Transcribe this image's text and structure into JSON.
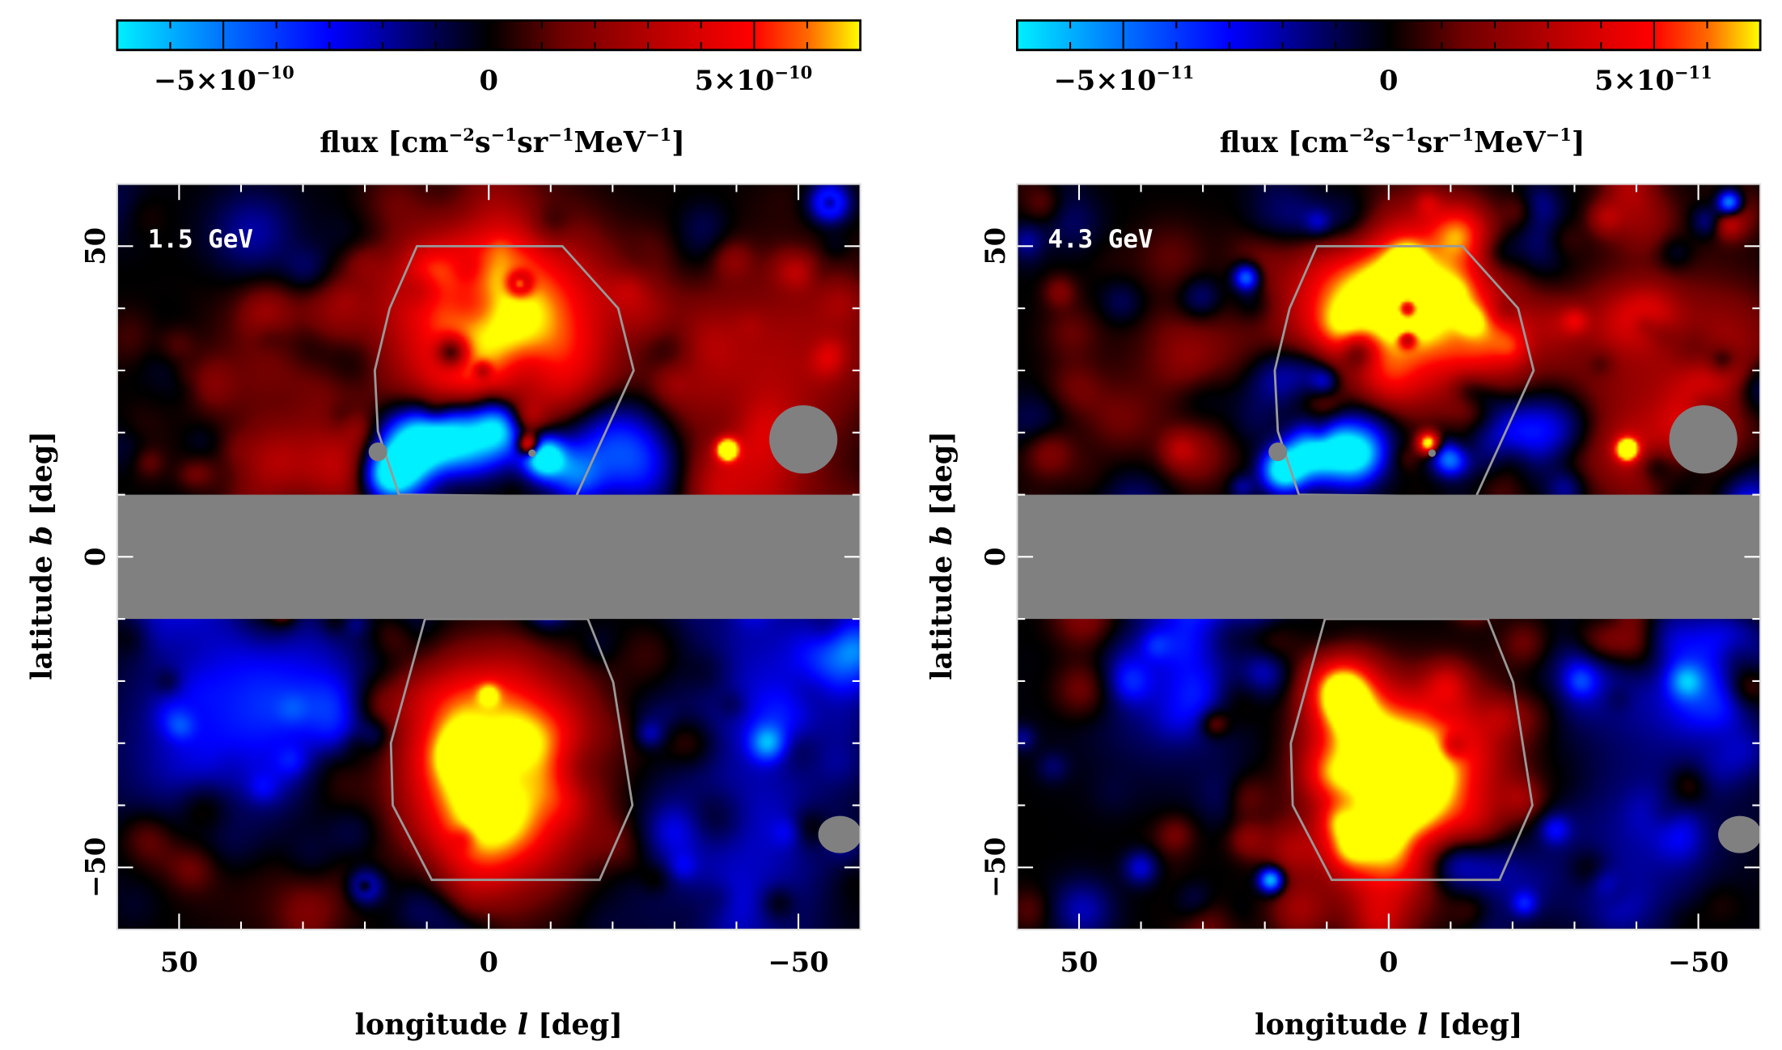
{
  "chart_data": [
    {
      "type": "heatmap",
      "energy_label": "1.5 GeV",
      "xlabel": {
        "pre": "longitude ",
        "var": "l",
        "post": " [deg]"
      },
      "ylabel": {
        "pre": "latitude ",
        "var": "b",
        "post": " [deg]"
      },
      "xlim": [
        60,
        -60
      ],
      "ylim": [
        -60,
        60
      ],
      "x_ticks": [
        {
          "value": 50,
          "label": "50"
        },
        {
          "value": 0,
          "label": "0"
        },
        {
          "value": -50,
          "label": "−50"
        }
      ],
      "y_ticks": [
        {
          "value": 50,
          "label": "50"
        },
        {
          "value": 0,
          "label": "0"
        },
        {
          "value": -50,
          "label": "−50"
        }
      ],
      "colorbar": {
        "min": -7e-10,
        "max": 7e-10,
        "minor_step": 1e-10,
        "labels": [
          {
            "value": -5e-10,
            "mantissa": "−5×10",
            "exponent": "−10"
          },
          {
            "value": 0,
            "mantissa": "0",
            "exponent": ""
          },
          {
            "value": 5e-10,
            "mantissa": "5×10",
            "exponent": "−10"
          }
        ],
        "title_parts": [
          [
            "flux [cm",
            ""
          ],
          [
            "",
            "−2"
          ],
          [
            "s",
            ""
          ],
          [
            "",
            "−1"
          ],
          [
            "sr",
            ""
          ],
          [
            "",
            "−1"
          ],
          [
            "MeV",
            ""
          ],
          [
            "",
            "−1"
          ],
          [
            "]",
            ""
          ]
        ]
      },
      "colormap": [
        [
          -1,
          "#00f0ff"
        ],
        [
          -0.71,
          "#0070ff"
        ],
        [
          -0.43,
          "#0000ff"
        ],
        [
          -0.2,
          "#000070"
        ],
        [
          0,
          "#000000"
        ],
        [
          0.2,
          "#700000"
        ],
        [
          0.5,
          "#c80000"
        ],
        [
          0.71,
          "#ff0000"
        ],
        [
          0.86,
          "#ff6a00"
        ],
        [
          1,
          "#ffff00"
        ]
      ],
      "mask": {
        "color": "#808080",
        "band_b": [
          -10,
          10
        ],
        "disks": [
          {
            "l": 17.9,
            "b": 16.9,
            "rl": 1.5,
            "rb": 1.5
          },
          {
            "l": -7,
            "b": 16.7,
            "rl": 0.6,
            "rb": 0.6
          },
          {
            "l": -50.8,
            "b": 18.9,
            "rl": 5.5,
            "rb": 5.5
          },
          {
            "l": -56.7,
            "b": -44.7,
            "rl": 3.5,
            "rb": 3
          }
        ]
      },
      "bubble_outline": {
        "color": "#999999",
        "north": [
          [
            11.6,
            50
          ],
          [
            -11.9,
            50
          ],
          [
            -20.9,
            40
          ],
          [
            -23.4,
            30
          ],
          [
            -14.1,
            9.7
          ],
          [
            14.5,
            10
          ],
          [
            17.9,
            20.2
          ],
          [
            18.4,
            30
          ],
          [
            16,
            40
          ]
        ],
        "south": [
          [
            10.3,
            -10
          ],
          [
            -16,
            -10
          ],
          [
            -20.1,
            -20.2
          ],
          [
            -23.2,
            -40
          ],
          [
            -17.9,
            -52
          ],
          [
            9.2,
            -52
          ],
          [
            15.5,
            -40
          ],
          [
            15.8,
            -30
          ]
        ]
      },
      "features": [
        [
          0,
          38,
          10,
          0.45
        ],
        [
          -10,
          35,
          9,
          0.42
        ],
        [
          8,
          42,
          8,
          0.42
        ],
        [
          -5,
          46,
          8,
          0.42
        ],
        [
          4,
          28,
          6,
          0.3
        ],
        [
          -14,
          26,
          5,
          0.3
        ],
        [
          6,
          33,
          1.8,
          -0.75
        ],
        [
          -5,
          44,
          1.4,
          -0.6
        ],
        [
          -5,
          44,
          0.6,
          0.5
        ],
        [
          1,
          30,
          1,
          -0.4
        ],
        [
          12,
          18,
          4,
          -1.2
        ],
        [
          5,
          19,
          4,
          -1.1
        ],
        [
          -2,
          21,
          3,
          -0.9
        ],
        [
          -9,
          16,
          2.2,
          -1.2
        ],
        [
          16,
          13,
          3,
          -1.2
        ],
        [
          -18,
          20,
          6,
          -0.55
        ],
        [
          -25,
          15,
          5,
          -0.45
        ],
        [
          -14,
          13,
          3,
          -0.5
        ],
        [
          30,
          30,
          10,
          0.28
        ],
        [
          24,
          14,
          5,
          0.4
        ],
        [
          35,
          15,
          4,
          0.3
        ],
        [
          -40,
          30,
          12,
          0.32
        ],
        [
          -42,
          13,
          8,
          0.38
        ],
        [
          -55,
          35,
          8,
          0.2
        ],
        [
          -38.5,
          17.3,
          1.2,
          1.2
        ],
        [
          -6.4,
          18,
          1.2,
          1.1
        ],
        [
          -6,
          22,
          2,
          0.4
        ],
        [
          3,
          -25,
          7,
          0.55
        ],
        [
          5,
          -35,
          8,
          0.55
        ],
        [
          -5,
          -40,
          9,
          0.5
        ],
        [
          -8,
          -28,
          8,
          0.45
        ],
        [
          0,
          -47,
          7,
          0.48
        ],
        [
          0,
          -22,
          1.2,
          0.35
        ],
        [
          2,
          -31,
          1.2,
          0.35
        ],
        [
          6,
          -30,
          4,
          0.2
        ],
        [
          35,
          -20,
          12,
          -0.38
        ],
        [
          45,
          -35,
          12,
          -0.3
        ],
        [
          -45,
          -20,
          12,
          -0.32
        ],
        [
          -40,
          -50,
          12,
          -0.32
        ],
        [
          -58,
          -15,
          5,
          -0.45
        ],
        [
          -45,
          -30,
          2,
          -0.55
        ],
        [
          25,
          -25,
          4,
          -0.3
        ],
        [
          40,
          -45,
          10,
          0.22
        ],
        [
          50,
          -5,
          5,
          -0.3
        ],
        [
          -55,
          57,
          2.2,
          -0.7
        ],
        [
          -55,
          57,
          0.8,
          0.4
        ],
        [
          20,
          -53,
          2,
          -0.5
        ],
        [
          20,
          -53,
          0.7,
          0.4
        ],
        [
          38,
          52,
          5,
          -0.3
        ]
      ],
      "noise_amplitude": 0.22
    },
    {
      "type": "heatmap",
      "energy_label": "4.3 GeV",
      "xlabel": {
        "pre": "longitude ",
        "var": "l",
        "post": " [deg]"
      },
      "ylabel": {
        "pre": "latitude ",
        "var": "b",
        "post": " [deg]"
      },
      "xlim": [
        60,
        -60
      ],
      "ylim": [
        -60,
        60
      ],
      "x_ticks": [
        {
          "value": 50,
          "label": "50"
        },
        {
          "value": 0,
          "label": "0"
        },
        {
          "value": -50,
          "label": "−50"
        }
      ],
      "y_ticks": [
        {
          "value": 50,
          "label": "50"
        },
        {
          "value": 0,
          "label": "0"
        },
        {
          "value": -50,
          "label": "−50"
        }
      ],
      "colorbar": {
        "min": -7e-11,
        "max": 7e-11,
        "minor_step": 1e-11,
        "labels": [
          {
            "value": -5e-11,
            "mantissa": "−5×10",
            "exponent": "−11"
          },
          {
            "value": 0,
            "mantissa": "0",
            "exponent": ""
          },
          {
            "value": 5e-11,
            "mantissa": "5×10",
            "exponent": "−11"
          }
        ],
        "title_parts": [
          [
            "flux [cm",
            ""
          ],
          [
            "",
            "−2"
          ],
          [
            "s",
            ""
          ],
          [
            "",
            "−1"
          ],
          [
            "sr",
            ""
          ],
          [
            "",
            "−1"
          ],
          [
            "MeV",
            ""
          ],
          [
            "",
            "−1"
          ],
          [
            "]",
            ""
          ]
        ]
      },
      "colormap": [
        [
          -1,
          "#00f0ff"
        ],
        [
          -0.71,
          "#0070ff"
        ],
        [
          -0.43,
          "#0000ff"
        ],
        [
          -0.2,
          "#000070"
        ],
        [
          0,
          "#000000"
        ],
        [
          0.2,
          "#700000"
        ],
        [
          0.5,
          "#c80000"
        ],
        [
          0.71,
          "#ff0000"
        ],
        [
          0.86,
          "#ff6a00"
        ],
        [
          1,
          "#ffff00"
        ]
      ],
      "mask": {
        "color": "#808080",
        "band_b": [
          -10,
          10
        ],
        "disks": [
          {
            "l": 17.9,
            "b": 16.9,
            "rl": 1.5,
            "rb": 1.5
          },
          {
            "l": -7,
            "b": 16.7,
            "rl": 0.6,
            "rb": 0.6
          },
          {
            "l": -50.8,
            "b": 18.9,
            "rl": 5.5,
            "rb": 5.5
          },
          {
            "l": -56.7,
            "b": -44.7,
            "rl": 3.5,
            "rb": 3
          }
        ]
      },
      "bubble_outline": {
        "color": "#999999",
        "north": [
          [
            11.6,
            50
          ],
          [
            -11.9,
            50
          ],
          [
            -20.9,
            40
          ],
          [
            -23.4,
            30
          ],
          [
            -14.1,
            9.7
          ],
          [
            14.5,
            10
          ],
          [
            17.9,
            20.2
          ],
          [
            18.4,
            30
          ],
          [
            16,
            40
          ]
        ],
        "south": [
          [
            10.3,
            -10
          ],
          [
            -16,
            -10
          ],
          [
            -20.1,
            -20.2
          ],
          [
            -23.2,
            -40
          ],
          [
            -17.9,
            -52
          ],
          [
            9.2,
            -52
          ],
          [
            15.5,
            -40
          ],
          [
            15.8,
            -30
          ]
        ]
      },
      "features": [
        [
          0,
          40,
          9,
          0.5
        ],
        [
          -10,
          36,
          8,
          0.5
        ],
        [
          8,
          42,
          7,
          0.5
        ],
        [
          -5,
          47,
          7,
          0.5
        ],
        [
          -18,
          36,
          4,
          0.35
        ],
        [
          -3,
          48,
          2,
          0.4
        ],
        [
          -3,
          40,
          1.3,
          -0.9
        ],
        [
          -3,
          35,
          1,
          -0.6
        ],
        [
          5,
          33,
          2,
          -0.5
        ],
        [
          12,
          30,
          3,
          -0.3
        ],
        [
          12,
          17,
          3,
          -1.0
        ],
        [
          17,
          14,
          2.5,
          -1.2
        ],
        [
          5,
          17,
          3,
          -0.8
        ],
        [
          -10,
          16,
          2,
          -0.9
        ],
        [
          -20,
          20,
          5,
          -0.5
        ],
        [
          -28,
          20,
          4,
          -0.4
        ],
        [
          30,
          30,
          9,
          0.22
        ],
        [
          -42,
          30,
          12,
          0.3
        ],
        [
          -45,
          14,
          7,
          0.3
        ],
        [
          -55,
          35,
          6,
          0.2
        ],
        [
          -38.5,
          17.3,
          1.2,
          1.25
        ],
        [
          -6.4,
          18.3,
          1.2,
          1.15
        ],
        [
          8,
          -20,
          4,
          0.7
        ],
        [
          5,
          -28,
          6,
          0.6
        ],
        [
          0,
          -35,
          8,
          0.6
        ],
        [
          -5,
          -42,
          8,
          0.55
        ],
        [
          -10,
          -30,
          7,
          0.5
        ],
        [
          2,
          -48,
          6,
          0.55
        ],
        [
          10,
          -35,
          3,
          0.35
        ],
        [
          35,
          -20,
          10,
          -0.3
        ],
        [
          -45,
          -20,
          10,
          -0.3
        ],
        [
          -40,
          -48,
          10,
          -0.25
        ],
        [
          -55,
          -15,
          4,
          -0.4
        ],
        [
          23,
          45,
          1.5,
          -0.8
        ],
        [
          -55,
          57,
          1.4,
          -1.0
        ],
        [
          19,
          -52,
          1.4,
          -1.0
        ],
        [
          -48,
          -20,
          2,
          -0.5
        ],
        [
          40,
          -50,
          2,
          -0.4
        ],
        [
          28,
          -5,
          0,
          0
        ]
      ],
      "noise_amplitude": 0.34
    }
  ]
}
